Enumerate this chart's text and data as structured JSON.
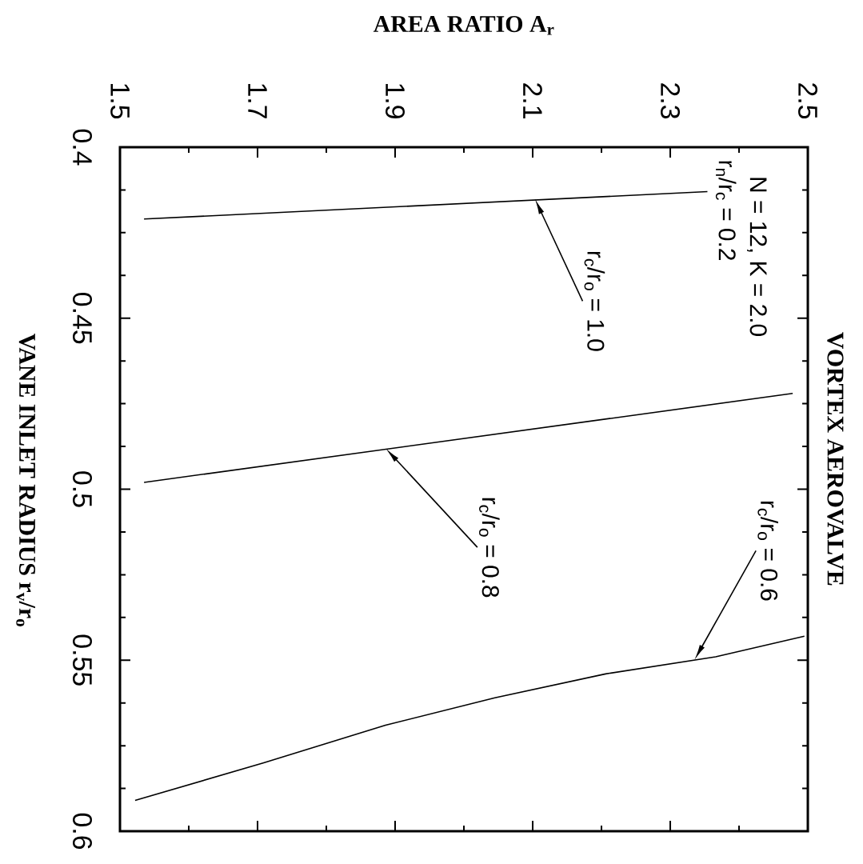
{
  "chart_data": {
    "type": "line",
    "title": "VORTEX AEROVALVE",
    "xlabel": "AREA RATIO A$_{r}$",
    "ylabel": "VANE INLET RADIUS r$_{v}$/r$_{o}$",
    "xlim": [
      1.5,
      2.5
    ],
    "ylim": [
      0.6,
      0.4
    ],
    "xticks": [
      1.5,
      1.7,
      1.9,
      2.1,
      2.3,
      2.5
    ],
    "yticks": [
      0.4,
      0.45,
      0.5,
      0.55,
      0.6
    ],
    "marker": "none",
    "line_style": "solid",
    "series": [
      {
        "color": "#000000",
        "x": [
          2.354,
          1.535
        ],
        "values": [
          0.413,
          0.421
        ]
      },
      {
        "color": "#000000",
        "x": [
          2.478,
          1.535
        ],
        "values": [
          0.472,
          0.498
        ]
      },
      {
        "color": "#000000",
        "x": [
          2.495,
          2.366,
          2.206,
          2.045,
          1.886,
          1.709,
          1.522
        ],
        "values": [
          0.543,
          0.549,
          0.554,
          0.561,
          0.569,
          0.58,
          0.591
        ]
      }
    ],
    "annotations": [
      "N = 12, K = 2.0",
      "r$_{n}$/r$_{c}$ = 0.2",
      "r$_{c}$/r$_{o}$ = 1.0",
      "r$_{c}$/r$_{o}$ = 0.8",
      "r$_{c}$/r$_{o}$ = 0.6"
    ]
  }
}
